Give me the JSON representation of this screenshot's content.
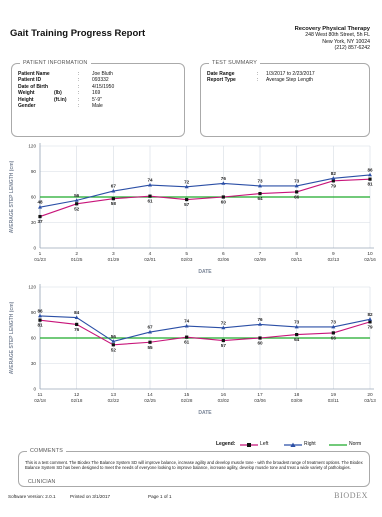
{
  "report": {
    "title": "Gait Training Progress Report"
  },
  "company": {
    "name": "Recovery Physical Therapy",
    "address1": "248 West 80th Street, 5h FL",
    "address2": "New York, NY 10024",
    "phone": "(212) 857-6242"
  },
  "patient": {
    "section_title": "PATIENT INFORMATION",
    "fields": [
      {
        "label": "Patient Name",
        "unit": "",
        "value": "Joe Bluth"
      },
      {
        "label": "Patient ID",
        "unit": "",
        "value": "093332"
      },
      {
        "label": "Date of Birth",
        "unit": "",
        "value": "4/15/1950"
      },
      {
        "label": "Weight",
        "unit": "(lb)",
        "value": "169"
      },
      {
        "label": "Height",
        "unit": "(ft.in)",
        "value": "5'-9\""
      },
      {
        "label": "Gender",
        "unit": "",
        "value": "Male"
      }
    ]
  },
  "test": {
    "section_title": "TEST SUMMARY",
    "fields": [
      {
        "label": "Date Range",
        "value": "1/3/2017 to 2/23/2017"
      },
      {
        "label": "Report Type",
        "value": "Average Step Length"
      }
    ]
  },
  "colors": {
    "left": "#c8157a",
    "right": "#2b4fa6",
    "norm": "#1faa2b",
    "axis": "#9aa6b8",
    "grid": "#d5dbe4"
  },
  "chart_data": [
    {
      "type": "line",
      "ylabel": "AVERAGE STEP LENGTH (cm)",
      "xlabel": "DATE",
      "ylim": [
        0,
        120
      ],
      "yticks": [
        0,
        30,
        60,
        90,
        120
      ],
      "x": [
        1,
        2,
        3,
        4,
        5,
        6,
        7,
        8,
        9,
        10
      ],
      "dates": [
        "01/23",
        "01/25",
        "01/29",
        "02/01",
        "02/03",
        "02/06",
        "02/09",
        "02/11",
        "02/13",
        "02/16"
      ],
      "norm": 60,
      "series": [
        {
          "name": "Left",
          "values": [
            37,
            52,
            58,
            61,
            57,
            60,
            64,
            66,
            79,
            81
          ]
        },
        {
          "name": "Right",
          "values": [
            48,
            56,
            67,
            74,
            72,
            76,
            73,
            73,
            82,
            86
          ]
        }
      ]
    },
    {
      "type": "line",
      "ylabel": "AVERAGE STEP LENGTH (cm)",
      "xlabel": "DATE",
      "ylim": [
        0,
        120
      ],
      "yticks": [
        0,
        30,
        60,
        90,
        120
      ],
      "x": [
        11,
        12,
        13,
        14,
        15,
        16,
        17,
        18,
        19,
        20
      ],
      "dates": [
        "02/18",
        "02/18",
        "02/22",
        "02/25",
        "02/28",
        "03/02",
        "03/06",
        "03/09",
        "03/11",
        "03/13"
      ],
      "norm": 60,
      "series": [
        {
          "name": "Left",
          "values": [
            81,
            76,
            52,
            55,
            61,
            57,
            60,
            64,
            66,
            79
          ]
        },
        {
          "name": "Right",
          "values": [
            86,
            84,
            56,
            67,
            74,
            72,
            76,
            73,
            73,
            82
          ]
        }
      ]
    }
  ],
  "legend": {
    "title": "Legend:",
    "left": "Left",
    "right": "Right",
    "norm": "Norm"
  },
  "comments": {
    "section_title": "COMMENTS",
    "text": "This is a test comment. The Biodex The Balance System SD will improve balance, increase agility and develop muscle tone - with the broadest range of treatment options. The Biodex Balance System SD has been designed to meet the needs of everyone looking to improve balance, increase agility, develop muscle tone and treat a wide variety of pathologies.",
    "clinician_label": "CLINICIAN"
  },
  "footer": {
    "software": "Software Version:  2.0.1",
    "printed": "Printed on 3/1/2017",
    "page": "Page 1 of 1",
    "brand": "BIODEX"
  }
}
